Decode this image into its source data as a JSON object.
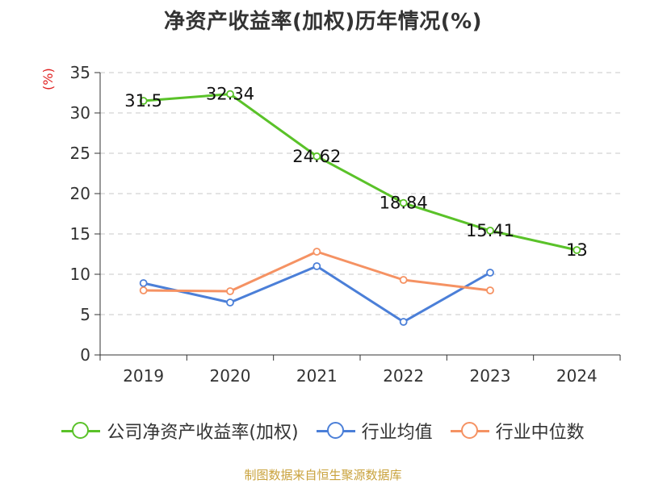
{
  "chart_data": {
    "type": "line",
    "title": "净资产收益率(加权)历年情况(%)",
    "ylabel": "(%)",
    "xlabel": "",
    "categories": [
      "2019",
      "2020",
      "2021",
      "2022",
      "2023",
      "2024"
    ],
    "ylim": [
      0,
      35
    ],
    "yticks": [
      0,
      5,
      10,
      15,
      20,
      25,
      30,
      35
    ],
    "grid": true,
    "legend_position": "bottom",
    "series": [
      {
        "name": "公司净资产收益率(加权)",
        "color": "#5ac229",
        "values": [
          31.5,
          32.34,
          24.62,
          18.84,
          15.41,
          13
        ],
        "labels": [
          "31.5",
          "32.34",
          "24.62",
          "18.84",
          "15.41",
          "13"
        ]
      },
      {
        "name": "行业均值",
        "color": "#4b7fd8",
        "values": [
          8.9,
          6.5,
          11.0,
          4.1,
          10.2,
          null
        ],
        "labels": []
      },
      {
        "name": "行业中位数",
        "color": "#f59263",
        "values": [
          8.0,
          7.9,
          12.8,
          9.3,
          8.0,
          null
        ],
        "labels": []
      }
    ]
  },
  "source": "制图数据来自恒生聚源数据库"
}
